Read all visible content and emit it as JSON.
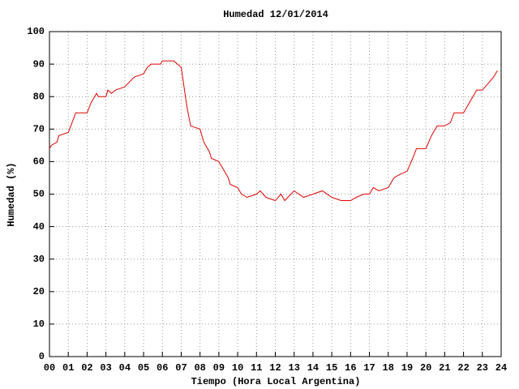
{
  "chart_data": {
    "type": "line",
    "title": "Humedad 12/01/2014",
    "xlabel": "Tiempo (Hora Local Argentina)",
    "ylabel": "Humedad (%)",
    "color": "#e00000",
    "grid": true,
    "xlim": [
      0,
      24
    ],
    "xticks": [
      {
        "value": 0,
        "label": "00"
      },
      {
        "value": 1,
        "label": "01"
      },
      {
        "value": 2,
        "label": "02"
      },
      {
        "value": 3,
        "label": "03"
      },
      {
        "value": 4,
        "label": "04"
      },
      {
        "value": 5,
        "label": "05"
      },
      {
        "value": 6,
        "label": "06"
      },
      {
        "value": 7,
        "label": "07"
      },
      {
        "value": 8,
        "label": "08"
      },
      {
        "value": 9,
        "label": "09"
      },
      10,
      11,
      12,
      13,
      14,
      15,
      16,
      17,
      18,
      19,
      20,
      21,
      22,
      23,
      24
    ],
    "ylim": [
      0,
      100
    ],
    "yticks": [
      0,
      10,
      20,
      30,
      40,
      50,
      60,
      70,
      80,
      90,
      100
    ],
    "x": [
      0.0,
      0.1,
      0.4,
      0.5,
      1.0,
      1.2,
      1.4,
      2.0,
      2.2,
      2.5,
      2.6,
      3.0,
      3.1,
      3.3,
      3.5,
      4.0,
      4.5,
      5.0,
      5.2,
      5.4,
      5.9,
      6.0,
      6.6,
      6.8,
      7.0,
      7.1,
      7.3,
      7.5,
      8.0,
      8.2,
      8.5,
      8.6,
      9.0,
      9.2,
      9.5,
      9.6,
      10.0,
      10.2,
      10.5,
      11.0,
      11.2,
      11.5,
      12.0,
      12.3,
      12.5,
      13.0,
      13.5,
      14.0,
      14.5,
      15.0,
      15.5,
      16.0,
      16.3,
      16.7,
      17.0,
      17.2,
      17.5,
      18.0,
      18.3,
      18.6,
      19.0,
      19.3,
      19.5,
      20.0,
      20.3,
      20.6,
      21.0,
      21.3,
      21.5,
      22.0,
      22.3,
      22.7,
      23.0,
      23.3,
      23.6,
      23.8
    ],
    "values": [
      64,
      65,
      66,
      68,
      69,
      72,
      75,
      75,
      78,
      81,
      80,
      80,
      82,
      81,
      82,
      83,
      86,
      87,
      89,
      90,
      90,
      91,
      91,
      90,
      89,
      85,
      77,
      71,
      70,
      66,
      63,
      61,
      60,
      58,
      55,
      53,
      52,
      50,
      49,
      50,
      51,
      49,
      48,
      50,
      48,
      51,
      49,
      50,
      51,
      49,
      48,
      48,
      49,
      50,
      50,
      52,
      51,
      52,
      55,
      56,
      57,
      61,
      64,
      64,
      68,
      71,
      71,
      72,
      75,
      75,
      78,
      82,
      82,
      84,
      86,
      88
    ]
  }
}
